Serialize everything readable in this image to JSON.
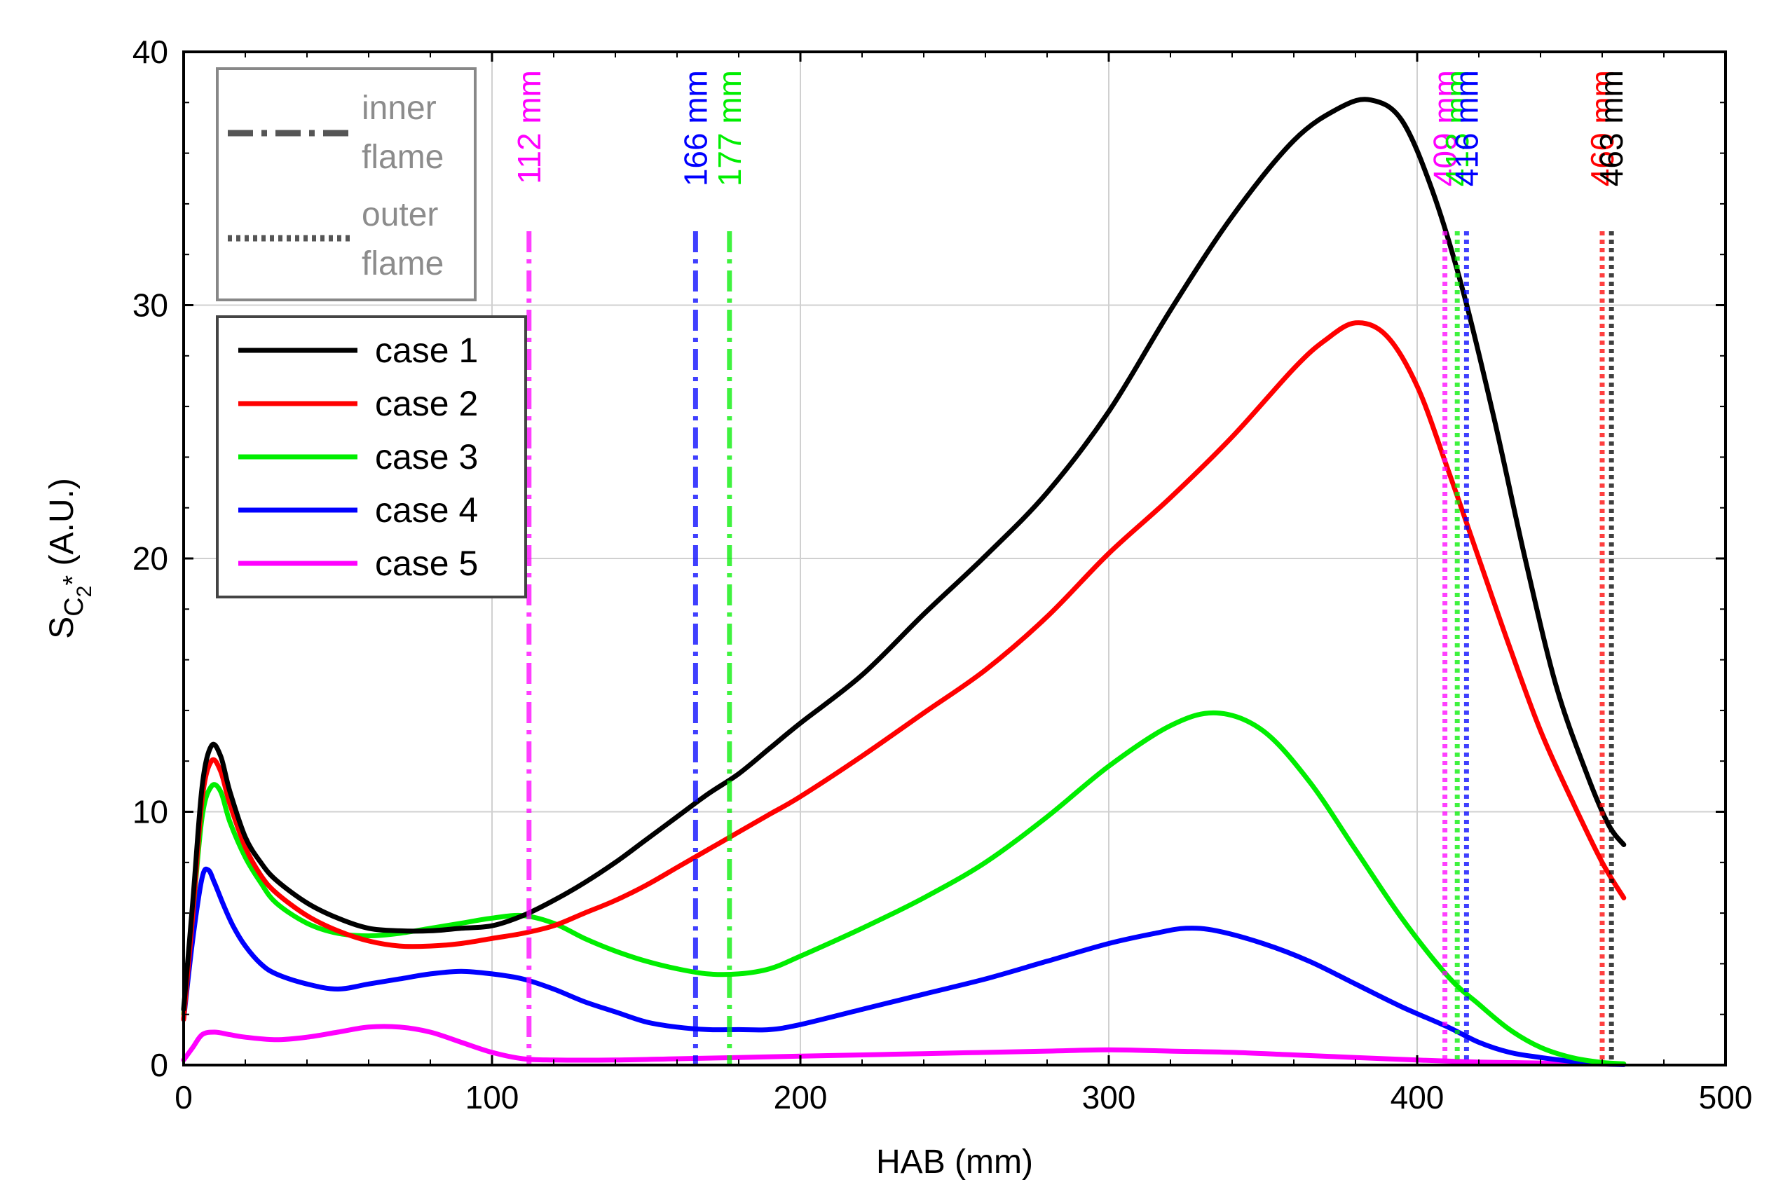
{
  "chart_data": {
    "type": "line",
    "title": "",
    "xlabel": "HAB (mm)",
    "ylabel": "S",
    "ylabel_sub": "C",
    "ylabel_subsub": "2",
    "ylabel_star": "*",
    "ylabel_units": " (A.U.)",
    "xlim": [
      0,
      500
    ],
    "ylim": [
      0,
      40
    ],
    "grid": true,
    "x_ticks": [
      0,
      100,
      200,
      300,
      400,
      500
    ],
    "y_ticks": [
      0,
      10,
      20,
      30,
      40
    ],
    "x_tick_labels": [
      "0",
      "100",
      "200",
      "300",
      "400",
      "500"
    ],
    "y_tick_labels": [
      "0",
      "10",
      "20",
      "30",
      "40"
    ],
    "series": [
      {
        "name": "case 1",
        "color": "#000000",
        "x": [
          0,
          3,
          6,
          9,
          12,
          15,
          20,
          25,
          30,
          40,
          50,
          60,
          70,
          80,
          90,
          100,
          110,
          120,
          130,
          140,
          150,
          160,
          170,
          180,
          190,
          200,
          220,
          240,
          260,
          280,
          300,
          320,
          340,
          360,
          375,
          385,
          395,
          405,
          415,
          425,
          435,
          445,
          455,
          462,
          467
        ],
        "y": [
          2.2,
          6.5,
          11.0,
          12.6,
          12.2,
          10.8,
          9.0,
          8.0,
          7.3,
          6.4,
          5.8,
          5.4,
          5.3,
          5.3,
          5.4,
          5.5,
          5.9,
          6.5,
          7.2,
          8.0,
          8.9,
          9.8,
          10.7,
          11.5,
          12.5,
          13.5,
          15.4,
          17.8,
          20.1,
          22.6,
          25.8,
          29.8,
          33.5,
          36.5,
          37.8,
          38.1,
          37.3,
          34.5,
          30.5,
          25.5,
          20.0,
          15.0,
          11.5,
          9.5,
          8.7
        ]
      },
      {
        "name": "case 2",
        "color": "#ff0000",
        "x": [
          0,
          3,
          6,
          9,
          12,
          15,
          20,
          25,
          30,
          40,
          50,
          60,
          70,
          80,
          90,
          100,
          110,
          120,
          130,
          140,
          150,
          160,
          170,
          180,
          190,
          200,
          220,
          240,
          260,
          280,
          300,
          320,
          340,
          360,
          370,
          380,
          390,
          400,
          410,
          420,
          430,
          440,
          450,
          460,
          467
        ],
        "y": [
          1.8,
          6.0,
          10.5,
          12.0,
          11.6,
          10.3,
          8.6,
          7.5,
          6.8,
          5.9,
          5.3,
          4.9,
          4.7,
          4.7,
          4.8,
          5.0,
          5.2,
          5.5,
          6.0,
          6.5,
          7.1,
          7.8,
          8.5,
          9.2,
          9.9,
          10.6,
          12.2,
          13.9,
          15.6,
          17.7,
          20.2,
          22.4,
          24.8,
          27.5,
          28.6,
          29.3,
          28.8,
          26.8,
          23.5,
          20.0,
          16.5,
          13.2,
          10.5,
          8.0,
          6.6
        ]
      },
      {
        "name": "case 3",
        "color": "#00ee00",
        "x": [
          0,
          3,
          6,
          9,
          12,
          15,
          20,
          25,
          30,
          40,
          50,
          60,
          70,
          80,
          90,
          100,
          110,
          120,
          130,
          140,
          150,
          160,
          170,
          180,
          190,
          200,
          220,
          240,
          260,
          280,
          300,
          320,
          335,
          350,
          365,
          380,
          395,
          410,
          420,
          430,
          440,
          450,
          460,
          467
        ],
        "y": [
          2.0,
          6.0,
          9.8,
          11.0,
          10.8,
          9.6,
          8.2,
          7.2,
          6.4,
          5.6,
          5.2,
          5.1,
          5.2,
          5.4,
          5.6,
          5.8,
          5.9,
          5.6,
          5.0,
          4.5,
          4.1,
          3.8,
          3.6,
          3.6,
          3.8,
          4.3,
          5.4,
          6.6,
          8.0,
          9.8,
          11.8,
          13.4,
          13.9,
          13.2,
          11.2,
          8.5,
          5.8,
          3.5,
          2.4,
          1.4,
          0.7,
          0.3,
          0.1,
          0.05
        ]
      },
      {
        "name": "case 4",
        "color": "#0000ff",
        "x": [
          0,
          3,
          6,
          8,
          10,
          13,
          16,
          20,
          25,
          30,
          40,
          50,
          60,
          70,
          80,
          90,
          100,
          110,
          120,
          130,
          140,
          150,
          160,
          170,
          180,
          190,
          200,
          220,
          240,
          260,
          280,
          300,
          315,
          325,
          335,
          350,
          365,
          380,
          395,
          410,
          420,
          430,
          440,
          450,
          460,
          467
        ],
        "y": [
          1.8,
          5.0,
          7.4,
          7.7,
          7.2,
          6.3,
          5.5,
          4.7,
          4.0,
          3.6,
          3.2,
          3.0,
          3.2,
          3.4,
          3.6,
          3.7,
          3.6,
          3.4,
          3.0,
          2.5,
          2.1,
          1.7,
          1.5,
          1.4,
          1.4,
          1.4,
          1.6,
          2.2,
          2.8,
          3.4,
          4.1,
          4.8,
          5.2,
          5.4,
          5.3,
          4.8,
          4.1,
          3.2,
          2.3,
          1.5,
          0.9,
          0.5,
          0.3,
          0.15,
          0.05,
          0.02
        ]
      },
      {
        "name": "case 5",
        "color": "#ff00ff",
        "x": [
          0,
          3,
          6,
          10,
          15,
          20,
          30,
          40,
          50,
          60,
          70,
          80,
          90,
          100,
          110,
          120,
          140,
          160,
          180,
          200,
          240,
          280,
          300,
          320,
          340,
          360,
          380,
          400,
          420,
          440,
          460,
          467
        ],
        "y": [
          0.2,
          0.7,
          1.2,
          1.3,
          1.2,
          1.1,
          1.0,
          1.1,
          1.3,
          1.5,
          1.5,
          1.3,
          0.9,
          0.5,
          0.25,
          0.2,
          0.2,
          0.25,
          0.3,
          0.35,
          0.45,
          0.55,
          0.6,
          0.55,
          0.5,
          0.4,
          0.3,
          0.2,
          0.12,
          0.08,
          0.04,
          0.02
        ]
      }
    ],
    "flame_markers": [
      {
        "x": 112,
        "label": "112 mm",
        "color": "#ff00ff",
        "type": "inner"
      },
      {
        "x": 166,
        "label": "166 mm",
        "color": "#0000ff",
        "type": "inner"
      },
      {
        "x": 177,
        "label": "177 mm",
        "color": "#00ee00",
        "type": "inner"
      },
      {
        "x": 409,
        "label": "409 mm",
        "color": "#ff00ff",
        "type": "outer"
      },
      {
        "x": 413,
        "label": "413 mm",
        "color": "#00ee00",
        "type": "outer"
      },
      {
        "x": 416,
        "label": "416 mm",
        "color": "#0000ff",
        "type": "outer"
      },
      {
        "x": 460,
        "label": "460 mm",
        "color": "#ff0000",
        "type": "outer"
      },
      {
        "x": 463,
        "label": "463 mm",
        "color": "#000000",
        "type": "outer"
      }
    ],
    "line_style_legend": [
      {
        "style": "dash-dot",
        "line1": "inner",
        "line2": "flame"
      },
      {
        "style": "dotted",
        "line1": "outer",
        "line2": "flame"
      }
    ],
    "legend_position": "top-left"
  }
}
